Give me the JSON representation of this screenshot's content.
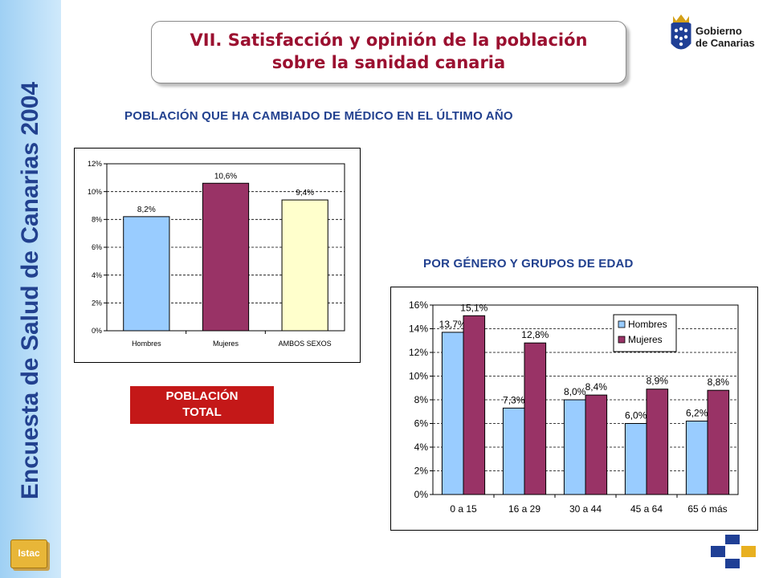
{
  "sidebar": {
    "vertical_title": "Encuesta de Salud de Canarias 2004",
    "istac_logo_text": "Istac"
  },
  "header": {
    "title_line1": "VII. Satisfacción y opinión de la población",
    "title_line2": "sobre la sanidad canaria",
    "gov_logo_line1": "Gobierno",
    "gov_logo_line2": "de Canarias"
  },
  "section": {
    "main_subtitle": "POBLACIÓN QUE HA CAMBIADO DE MÉDICO EN EL ÚLTIMO AÑO",
    "second_subtitle": "POR GÉNERO Y GRUPOS DE EDAD",
    "total_label_line1": "POBLACIÓN",
    "total_label_line2": "TOTAL"
  },
  "colors": {
    "hombres": "#99ccff",
    "mujeres": "#993366",
    "ambos": "#ffffcc",
    "title": "#9b1030",
    "blue_text": "#22418f",
    "red_box": "#c41818"
  },
  "chart_data": [
    {
      "type": "bar",
      "title": "",
      "categories": [
        "Hombres",
        "Mujeres",
        "AMBOS SEXOS"
      ],
      "values": [
        8.2,
        10.6,
        9.4
      ],
      "labels": [
        "8,2%",
        "10,6%",
        "9,4%"
      ],
      "colors": [
        "#99ccff",
        "#993366",
        "#ffffcc"
      ],
      "ylim": [
        0,
        12
      ],
      "yticks": [
        "0%",
        "2%",
        "4%",
        "6%",
        "8%",
        "10%",
        "12%"
      ],
      "grid": true
    },
    {
      "type": "bar",
      "title": "",
      "categories": [
        "0 a 15",
        "16 a 29",
        "30 a 44",
        "45 a 64",
        "65 ó más"
      ],
      "series": [
        {
          "name": "Hombres",
          "values": [
            13.7,
            7.3,
            8.0,
            6.0,
            6.2
          ],
          "labels": [
            "13,7%",
            "7,3%",
            "8,0%",
            "6,0%",
            "6,2%"
          ],
          "color": "#99ccff"
        },
        {
          "name": "Mujeres",
          "values": [
            15.1,
            12.8,
            8.4,
            8.9,
            8.8
          ],
          "labels": [
            "15,1%",
            "12,8%",
            "8,4%",
            "8,9%",
            "8,8%"
          ],
          "color": "#993366"
        }
      ],
      "ylim": [
        0,
        16
      ],
      "yticks": [
        "0%",
        "2%",
        "4%",
        "6%",
        "8%",
        "10%",
        "12%",
        "14%",
        "16%"
      ],
      "legend": "top-right",
      "grid": true
    }
  ]
}
